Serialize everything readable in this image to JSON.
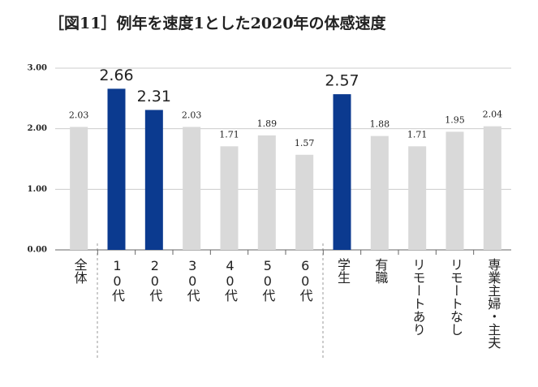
{
  "chart_data": {
    "type": "bar",
    "title": "［図11］例年を速度1とした2020年の体感速度",
    "categories": [
      "全体",
      "10代",
      "20代",
      "30代",
      "40代",
      "50代",
      "60代",
      "学生",
      "有職",
      "リモートあり",
      "リモートなし",
      "専業主婦・主夫"
    ],
    "values": [
      2.03,
      2.66,
      2.31,
      2.03,
      1.71,
      1.89,
      1.57,
      2.57,
      1.88,
      1.71,
      1.95,
      2.04
    ],
    "colors": [
      "#d9d9d9",
      "#0b3a8f",
      "#0b3a8f",
      "#d9d9d9",
      "#d9d9d9",
      "#d9d9d9",
      "#d9d9d9",
      "#0b3a8f",
      "#d9d9d9",
      "#d9d9d9",
      "#d9d9d9",
      "#d9d9d9"
    ],
    "ylim": [
      0,
      3
    ],
    "yticks": [
      {
        "value": 0,
        "label": "0.00"
      },
      {
        "value": 1,
        "label": "1.00"
      },
      {
        "value": 2,
        "label": "2.00"
      },
      {
        "value": 3,
        "label": "3.00"
      }
    ],
    "grid": true
  }
}
